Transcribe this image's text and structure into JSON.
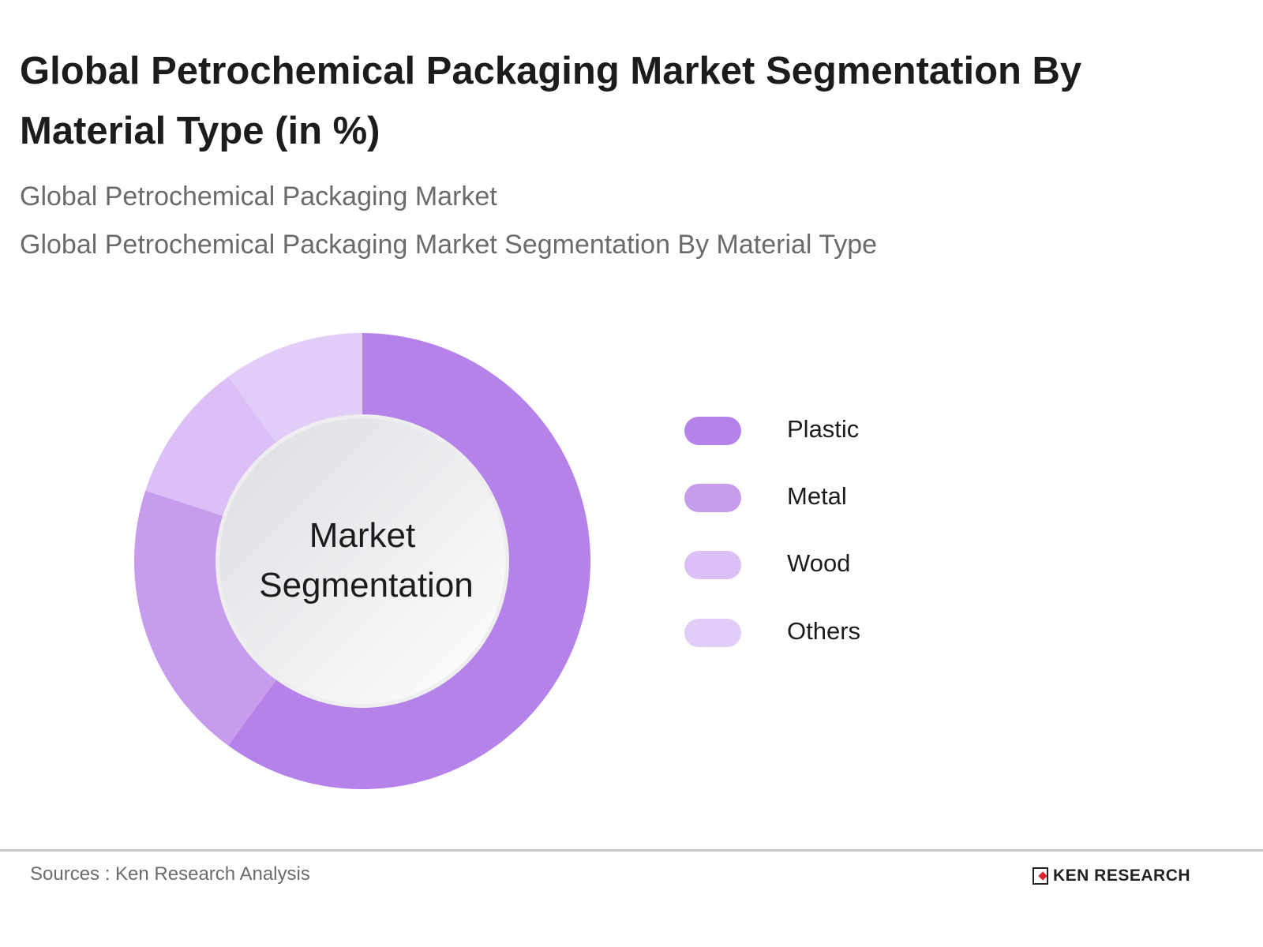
{
  "title": "Global Petrochemical Packaging Market Segmentation By Material Type (in %)",
  "subtitle_1": "Global Petrochemical Packaging Market",
  "subtitle_2": "Global Petrochemical Packaging Market Segmentation By Material Type",
  "center_label_line1": "Market",
  "center_label_line2": "Segmentation",
  "source": "Sources : Ken Research Analysis",
  "logo_text": "KEN RESEARCH",
  "chart_data": {
    "type": "pie",
    "variant": "donut",
    "title": "Global Petrochemical Packaging Market Segmentation By Material Type (in %)",
    "categories": [
      "Plastic",
      "Metal",
      "Wood",
      "Others"
    ],
    "values": [
      60,
      20,
      10,
      10
    ],
    "colors": [
      "#b582ea",
      "#c79ced",
      "#dbbff6",
      "#e2cdf8"
    ],
    "center_text": "Market Segmentation",
    "legend_position": "right",
    "units": "%"
  },
  "legend": [
    {
      "label": "Plastic",
      "color": "#b582ea"
    },
    {
      "label": "Metal",
      "color": "#c79ced"
    },
    {
      "label": "Wood",
      "color": "#dbbff6"
    },
    {
      "label": "Others",
      "color": "#e2cdf8"
    }
  ]
}
